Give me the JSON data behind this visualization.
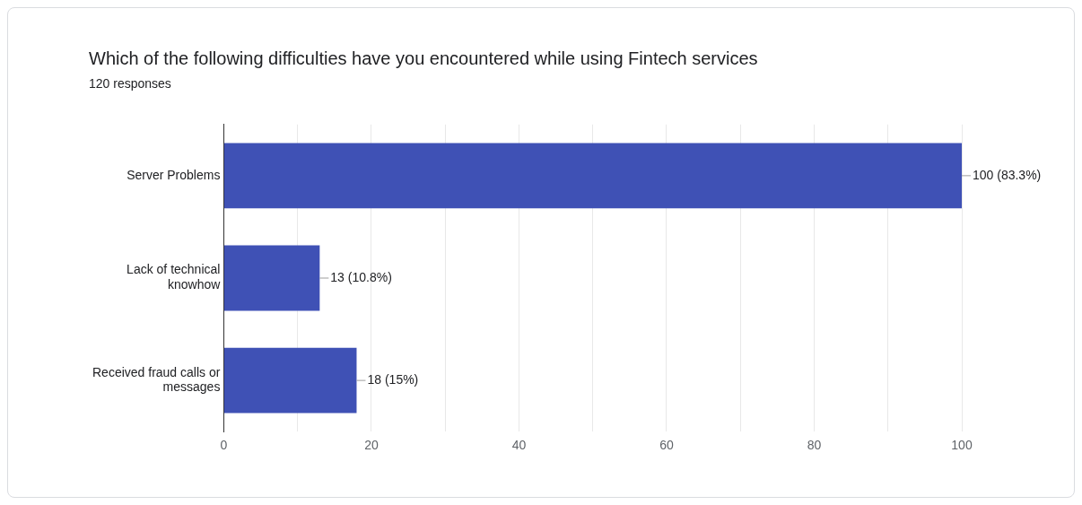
{
  "chart_data": {
    "type": "bar",
    "orientation": "horizontal",
    "title": "Which of the following difficulties have you encountered while using Fintech services",
    "subtitle": "120 responses",
    "categories": [
      "Server Problems",
      "Lack of technical knowhow",
      "Received fraud calls or messages"
    ],
    "values": [
      100,
      13,
      18
    ],
    "color": "#3f51b5",
    "value_labels": [
      "100 (83.3%)",
      "13 (10.8%)",
      "18 (15%)"
    ],
    "xlim": [
      0,
      100
    ],
    "xticks": [
      0,
      {
        "value": 10,
        "label": null
      },
      20,
      {
        "value": 30,
        "label": null
      },
      40,
      {
        "value": 50,
        "label": null
      },
      60,
      {
        "value": 70,
        "label": null
      },
      80,
      {
        "value": 90,
        "label": null
      },
      100
    ],
    "grid": "x",
    "legend": false
  }
}
